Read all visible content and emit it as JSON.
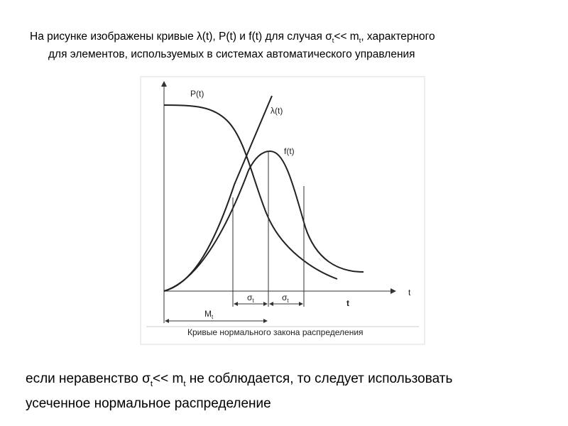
{
  "header": {
    "lines": [
      [
        "На рисунке изображены кривые λ(t), P(t) и f(t) для случая σ",
        "t",
        "<< m",
        "t",
        ", характерного"
      ],
      [
        "для элементов, используемых в системах автоматического управления"
      ]
    ]
  },
  "figure": {
    "labels": {
      "p": "P(t)",
      "lambda": "λ(t)",
      "f": "f(t)",
      "axis_t": "t",
      "t": "t",
      "sigma1": [
        "σ",
        "t"
      ],
      "sigma2": [
        "σ",
        "t"
      ],
      "m": [
        "M",
        "t"
      ]
    },
    "caption": "Кривые нормального закона распределения"
  },
  "footer": {
    "lines": [
      [
        "если неравенство σ",
        "t",
        "<< m",
        "t",
        " не соблюдается, то следует использовать"
      ],
      [
        "усеченное нормальное распределение"
      ]
    ]
  }
}
